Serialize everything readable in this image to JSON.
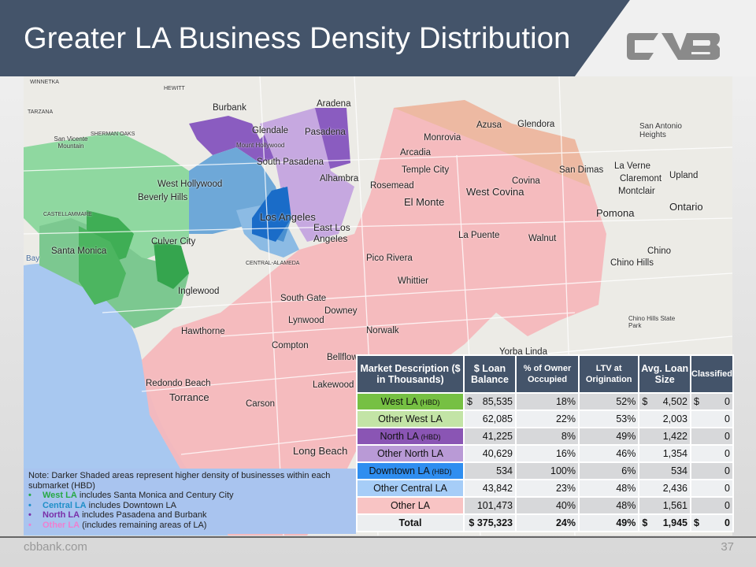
{
  "header": {
    "title": "Greater LA Business Density Distribution",
    "logo_text": "CVB"
  },
  "map": {
    "cities": [
      "WINNETKA",
      "HEWITT",
      "Burbank",
      "Aradena",
      "TARZANA",
      "SHERMAN OAKS",
      "San Vicente Mountain",
      "Glendale",
      "Pasadena",
      "Monrovia",
      "Azusa",
      "Glendora",
      "San Antonio Heights",
      "Mount Hollywood",
      "South Pasadena",
      "Arcadia",
      "Temple City",
      "San Dimas",
      "La Verne",
      "Upland",
      "Claremont",
      "West Hollywood",
      "Alhambra",
      "Rosemead",
      "Covina",
      "West Covina",
      "Montclair",
      "Ontario",
      "Beverly Hills",
      "El Monte",
      "Pomona",
      "CASTELLAMMARE",
      "Los Angeles",
      "East Los Angeles",
      "La Puente",
      "Walnut",
      "Culver City",
      "Santa Monica",
      "Pico Rivera",
      "Chino",
      "Chino Hills",
      "Inglewood",
      "Whittier",
      "South Gate",
      "Downey",
      "Lynwood",
      "Hawthorne",
      "Norwalk",
      "Compton",
      "Bellflower",
      "Redondo Beach",
      "Torrance",
      "Carson",
      "Lakewood",
      "Long Beach",
      "Yorba Linda",
      "Chino Hills State Park",
      "Bay",
      "CENTRAL-ALAMEDA"
    ]
  },
  "note": {
    "intro": "Note: Darker Shaded areas represent higher density of businesses within each submarket (HBD)",
    "items": [
      {
        "bullet": "•",
        "name": "West LA",
        "text": " includes Santa Monica and Century City",
        "color": "#27a844"
      },
      {
        "bullet": "•",
        "name": "Central LA",
        "text": " includes Downtown LA",
        "color": "#1f8fc8"
      },
      {
        "bullet": "•",
        "name": "North LA",
        "text": " includes Pasadena and Burbank",
        "color": "#7a2fa8"
      },
      {
        "bullet": "•",
        "name": "Other LA",
        "text": " (includes remaining areas of LA)",
        "color": "#ef7fd0"
      }
    ]
  },
  "table": {
    "headers": [
      "Market Description ($ in Thousands)",
      "$ Loan Balance",
      "% of Owner Occupied",
      "LTV at Origination",
      "Avg. Loan Size",
      "Classified"
    ],
    "rows": [
      {
        "name": "West LA",
        "tag": "(HBD)",
        "color": "#76c043",
        "balance_prefix": "$",
        "balance": "85,535",
        "owner": "18%",
        "ltv": "52%",
        "avg_prefix": "$",
        "avg": "4,502",
        "class_prefix": "$",
        "classified": "0"
      },
      {
        "name": "Other West LA",
        "tag": "",
        "color": "#c3e4a6",
        "balance_prefix": "",
        "balance": "62,085",
        "owner": "22%",
        "ltv": "53%",
        "avg_prefix": "",
        "avg": "2,003",
        "class_prefix": "",
        "classified": "0"
      },
      {
        "name": "North LA",
        "tag": "(HBD)",
        "color": "#8a55b4",
        "balance_prefix": "",
        "balance": "41,225",
        "owner": "8%",
        "ltv": "49%",
        "avg_prefix": "",
        "avg": "1,422",
        "class_prefix": "",
        "classified": "0"
      },
      {
        "name": "Other North LA",
        "tag": "",
        "color": "#b99ad6",
        "balance_prefix": "",
        "balance": "40,629",
        "owner": "16%",
        "ltv": "46%",
        "avg_prefix": "",
        "avg": "1,354",
        "class_prefix": "",
        "classified": "0"
      },
      {
        "name": "Downtown LA",
        "tag": "(HBD)",
        "color": "#2f8ef0",
        "balance_prefix": "",
        "balance": "534",
        "owner": "100%",
        "ltv": "6%",
        "avg_prefix": "",
        "avg": "534",
        "class_prefix": "",
        "classified": "0"
      },
      {
        "name": "Other Central LA",
        "tag": "",
        "color": "#a6cdf7",
        "balance_prefix": "",
        "balance": "43,842",
        "owner": "23%",
        "ltv": "48%",
        "avg_prefix": "",
        "avg": "2,436",
        "class_prefix": "",
        "classified": "0"
      },
      {
        "name": "Other LA",
        "tag": "",
        "color": "#f8c4c4",
        "balance_prefix": "",
        "balance": "101,473",
        "owner": "40%",
        "ltv": "48%",
        "avg_prefix": "",
        "avg": "1,561",
        "class_prefix": "",
        "classified": "0"
      }
    ],
    "total": {
      "name": "Total",
      "balance": "$ 375,323",
      "owner": "24%",
      "ltv": "49%",
      "avg_prefix": "$",
      "avg": "1,945",
      "class_prefix": "$",
      "classified": "0"
    }
  },
  "footer": {
    "site": "cbbank.com",
    "page": "37"
  }
}
